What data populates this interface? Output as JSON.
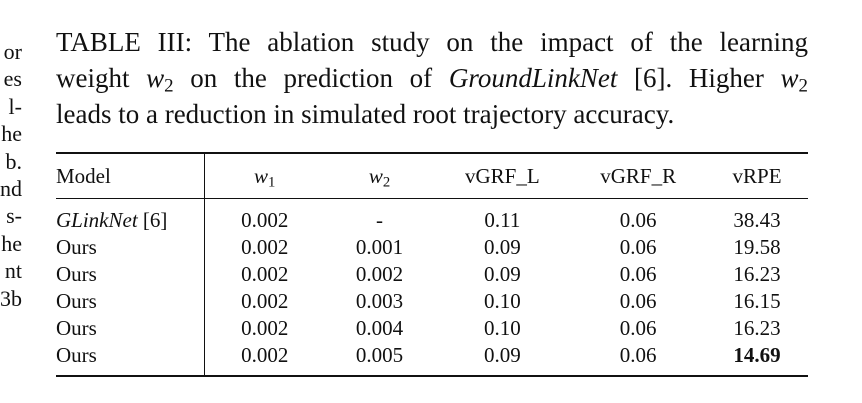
{
  "left_fragments": [
    "or",
    "es",
    "l-",
    "he",
    "b.",
    "nd",
    "s-",
    "he",
    "nt",
    "3b"
  ],
  "caption": {
    "label": "TABLE III:",
    "line1_text": "The ablation study on the impact of the learning",
    "line2_pre": "weight ",
    "line2_var": "w",
    "line2_sub": "2",
    "line2_mid": " on the prediction of ",
    "line2_em": "GroundLinkNet",
    "line2_post": " [6]. Higher ",
    "line2_var2": "w",
    "line2_sub2": "2",
    "line3_text": "leads to a reduction in simulated root trajectory accuracy."
  },
  "table": {
    "headers": {
      "model": "Model",
      "w1_var": "w",
      "w1_sub": "1",
      "w2_var": "w",
      "w2_sub": "2",
      "vgrf_l": "vGRF_L",
      "vgrf_r": "vGRF_R",
      "vrpe": "vRPE"
    },
    "rows": [
      {
        "model": "GLinkNet",
        "model_ref": " [6]",
        "w1": "0.002",
        "w2": "-",
        "vgrf_l": "0.11",
        "vgrf_r": "0.06",
        "vrpe": "38.43"
      },
      {
        "model": "Ours",
        "model_ref": "",
        "w1": "0.002",
        "w2": "0.001",
        "vgrf_l": "0.09",
        "vgrf_r": "0.06",
        "vrpe": "19.58"
      },
      {
        "model": "Ours",
        "model_ref": "",
        "w1": "0.002",
        "w2": "0.002",
        "vgrf_l": "0.09",
        "vgrf_r": "0.06",
        "vrpe": "16.23"
      },
      {
        "model": "Ours",
        "model_ref": "",
        "w1": "0.002",
        "w2": "0.003",
        "vgrf_l": "0.10",
        "vgrf_r": "0.06",
        "vrpe": "16.15"
      },
      {
        "model": "Ours",
        "model_ref": "",
        "w1": "0.002",
        "w2": "0.004",
        "vgrf_l": "0.10",
        "vgrf_r": "0.06",
        "vrpe": "16.23"
      },
      {
        "model": "Ours",
        "model_ref": "",
        "w1": "0.002",
        "w2": "0.005",
        "vgrf_l": "0.09",
        "vgrf_r": "0.06",
        "vrpe": "14.69"
      }
    ]
  }
}
